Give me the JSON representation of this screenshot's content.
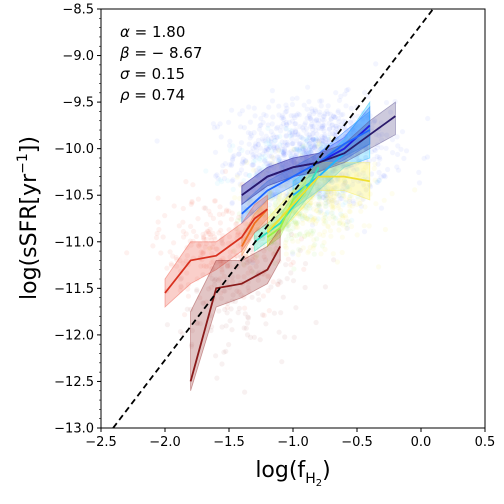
{
  "chart_data": {
    "type": "scatter",
    "title": "",
    "xlabel": "log(f",
    "xlabel_sub": "H",
    "xlabel_subsub": "2",
    "xlabel_close": ")",
    "ylabel": "log(sSFR[yr",
    "ylabel_sup": "−1",
    "ylabel_close": "])",
    "xlim": [
      -2.5,
      0.5
    ],
    "ylim": [
      -13.0,
      -8.5
    ],
    "xticks": [
      {
        "v": -2.5,
        "label": "−2.5"
      },
      {
        "v": -2.0,
        "label": "−2.0"
      },
      {
        "v": -1.5,
        "label": "−1.5"
      },
      {
        "v": -1.0,
        "label": "−1.0"
      },
      {
        "v": -0.5,
        "label": "−0.5"
      },
      {
        "v": 0.0,
        "label": "0.0"
      },
      {
        "v": 0.5,
        "label": "0.5"
      }
    ],
    "yticks": [
      {
        "v": -8.5,
        "label": "−8.5"
      },
      {
        "v": -9.0,
        "label": "−9.0"
      },
      {
        "v": -9.5,
        "label": "−9.5"
      },
      {
        "v": -10.0,
        "label": "−10.0"
      },
      {
        "v": -10.5,
        "label": "−10.5"
      },
      {
        "v": -11.0,
        "label": "−11.0"
      },
      {
        "v": -11.5,
        "label": "−11.5"
      },
      {
        "v": -12.0,
        "label": "−12.0"
      },
      {
        "v": -12.5,
        "label": "−12.5"
      },
      {
        "v": -13.0,
        "label": "−13.0"
      }
    ],
    "annotations": [
      {
        "symbol": "α",
        "text": " = 1.80"
      },
      {
        "symbol": "β",
        "text": " = − 8.67"
      },
      {
        "symbol": "σ",
        "text": " = 0.15"
      },
      {
        "symbol": "ρ",
        "text": " = 0.74"
      }
    ],
    "fit_line": {
      "slope": 1.8,
      "intercept": -8.67,
      "style": "dashed",
      "color": "#000000"
    },
    "series": [
      {
        "color": "#1f1fe0",
        "band": "#2a3bff",
        "x": [
          -1.4,
          -1.2,
          -1.0,
          -0.8,
          -0.6,
          -0.4
        ],
        "y": [
          -10.5,
          -10.3,
          -10.2,
          -10.15,
          -10.0,
          -9.75
        ],
        "lo": [
          -10.6,
          -10.4,
          -10.3,
          -10.25,
          -10.12,
          -9.95
        ],
        "hi": [
          -10.4,
          -10.2,
          -10.1,
          -10.05,
          -9.88,
          -9.55
        ]
      },
      {
        "color": "#1e66ff",
        "band": "#2a7bff",
        "x": [
          -1.4,
          -1.2,
          -1.0,
          -0.8,
          -0.6,
          -0.4
        ],
        "y": [
          -10.7,
          -10.45,
          -10.3,
          -10.15,
          -9.95,
          -9.8
        ],
        "lo": [
          -10.8,
          -10.55,
          -10.4,
          -10.25,
          -10.08,
          -9.95
        ],
        "hi": [
          -10.6,
          -10.35,
          -10.2,
          -10.05,
          -9.82,
          -9.6
        ]
      },
      {
        "color": "#1fb4ff",
        "band": "#22c4ff",
        "x": [
          -1.0,
          -0.8,
          -0.6,
          -0.4
        ],
        "y": [
          -10.5,
          -10.3,
          -10.05,
          -9.85
        ],
        "lo": [
          -10.65,
          -10.45,
          -10.2,
          -10.1
        ],
        "hi": [
          -10.35,
          -10.15,
          -9.9,
          -9.5
        ]
      },
      {
        "color": "#2fe0c0",
        "band": "#30e0c0",
        "x": [
          -1.3,
          -1.1,
          -0.9,
          -0.8
        ],
        "y": [
          -11.0,
          -10.8,
          -10.45,
          -10.2
        ],
        "lo": [
          -11.1,
          -10.9,
          -10.55,
          -10.3
        ],
        "hi": [
          -10.9,
          -10.7,
          -10.35,
          -10.1
        ]
      },
      {
        "color": "#9af047",
        "band": "#aaf050",
        "x": [
          -1.2,
          -1.1,
          -1.0,
          -0.9
        ],
        "y": [
          -10.95,
          -10.85,
          -10.55,
          -10.4
        ],
        "lo": [
          -11.05,
          -10.95,
          -10.65,
          -10.5
        ],
        "hi": [
          -10.85,
          -10.75,
          -10.45,
          -10.3
        ]
      },
      {
        "color": "#f0e030",
        "band": "#f8ee50",
        "x": [
          -1.2,
          -1.0,
          -0.8,
          -0.6,
          -0.4
        ],
        "y": [
          -10.9,
          -10.6,
          -10.3,
          -10.3,
          -10.35
        ],
        "lo": [
          -11.05,
          -10.75,
          -10.45,
          -10.45,
          -10.55
        ],
        "hi": [
          -10.75,
          -10.45,
          -10.15,
          -10.15,
          -10.15
        ]
      },
      {
        "color": "#f07020",
        "band": "#f29040",
        "x": [
          -1.4,
          -1.3,
          -1.2
        ],
        "y": [
          -11.05,
          -10.8,
          -10.65
        ],
        "lo": [
          -11.15,
          -10.9,
          -10.75
        ],
        "hi": [
          -10.95,
          -10.7,
          -10.55
        ]
      },
      {
        "color": "#d8301e",
        "band": "#f06050",
        "x": [
          -2.0,
          -1.8,
          -1.6,
          -1.4,
          -1.3,
          -1.2
        ],
        "y": [
          -11.55,
          -11.2,
          -11.15,
          -10.95,
          -10.75,
          -10.65
        ],
        "lo": [
          -11.7,
          -11.45,
          -11.3,
          -11.1,
          -10.9,
          -10.8
        ],
        "hi": [
          -11.4,
          -11.0,
          -11.0,
          -10.8,
          -10.6,
          -10.5
        ]
      },
      {
        "color": "#8a1a1a",
        "band": "#a04040",
        "x": [
          -1.8,
          -1.6,
          -1.4,
          -1.2,
          -1.1
        ],
        "y": [
          -12.5,
          -11.5,
          -11.45,
          -11.3,
          -11.05
        ],
        "lo": [
          -12.6,
          -11.7,
          -11.6,
          -11.45,
          -11.2
        ],
        "hi": [
          -11.75,
          -11.2,
          -11.2,
          -11.05,
          -10.85
        ]
      },
      {
        "color": "#2a1a6a",
        "band": "#5a5090",
        "x": [
          -1.4,
          -1.2,
          -1.0,
          -0.8,
          -0.6,
          -0.4,
          -0.2
        ],
        "y": [
          -10.5,
          -10.3,
          -10.2,
          -10.15,
          -10.05,
          -9.85,
          -9.65
        ],
        "lo": [
          -10.6,
          -10.4,
          -10.3,
          -10.25,
          -10.15,
          -10.0,
          -9.85
        ],
        "hi": [
          -10.4,
          -10.2,
          -10.1,
          -10.05,
          -9.95,
          -9.7,
          -9.5
        ]
      }
    ],
    "scatter_clouds": [
      {
        "color": "#3a50ff",
        "opacity": 0.06,
        "cx": -0.85,
        "cy": -10.05,
        "sx": 0.3,
        "sy": 0.28,
        "n": 900
      },
      {
        "color": "#22c4ff",
        "opacity": 0.06,
        "cx": -0.9,
        "cy": -10.3,
        "sx": 0.25,
        "sy": 0.25,
        "n": 250
      },
      {
        "color": "#f0e030",
        "opacity": 0.08,
        "cx": -0.85,
        "cy": -10.55,
        "sx": 0.25,
        "sy": 0.25,
        "n": 350
      },
      {
        "color": "#90e050",
        "opacity": 0.08,
        "cx": -1.1,
        "cy": -10.8,
        "sx": 0.18,
        "sy": 0.2,
        "n": 150
      },
      {
        "color": "#f06050",
        "opacity": 0.09,
        "cx": -1.55,
        "cy": -11.05,
        "sx": 0.25,
        "sy": 0.28,
        "n": 250
      },
      {
        "color": "#a05050",
        "opacity": 0.08,
        "cx": -1.4,
        "cy": -11.6,
        "sx": 0.25,
        "sy": 0.35,
        "n": 120
      }
    ]
  }
}
